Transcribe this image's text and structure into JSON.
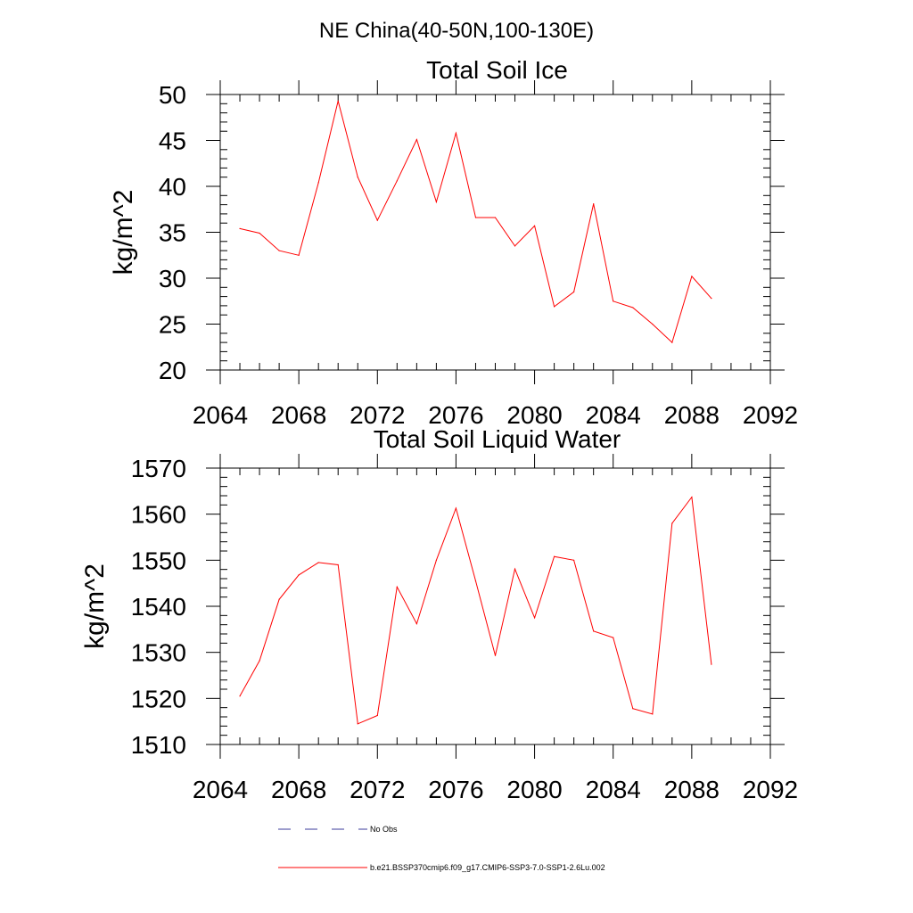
{
  "page_title": "NE China(40-50N,100-130E)",
  "colors": {
    "series": "#ff0000",
    "obs": "#3b3b9b",
    "axis": "#000000"
  },
  "legend": {
    "obs_label": "No Obs",
    "model_label": "b.e21.BSSP370cmip6.f09_g17.CMIP6-SSP3-7.0-SSP1-2.6Lu.002"
  },
  "chart_data": [
    {
      "type": "line",
      "title": "Total Soil Ice",
      "xlabel": "",
      "ylabel": "kg/m^2",
      "xlim": [
        2064,
        2092
      ],
      "ylim": [
        20,
        50
      ],
      "xticks": [
        2064,
        2068,
        2072,
        2076,
        2080,
        2084,
        2088,
        2092
      ],
      "yticks": [
        20,
        25,
        30,
        35,
        40,
        45,
        50
      ],
      "series": [
        {
          "x": [
            2065,
            2066,
            2067,
            2068,
            2069,
            2070,
            2071,
            2072,
            2073,
            2074,
            2075,
            2076,
            2077,
            2078,
            2079,
            2080,
            2081,
            2082,
            2083,
            2084,
            2085,
            2086,
            2087,
            2088,
            2089
          ],
          "values": [
            35.4,
            34.9,
            33.0,
            32.5,
            40.4,
            49.3,
            41.0,
            36.3,
            40.6,
            45.1,
            38.3,
            45.8,
            36.6,
            36.6,
            33.5,
            35.7,
            26.9,
            28.5,
            38.1,
            27.5,
            26.8,
            25.0,
            23.0,
            30.2,
            27.8
          ]
        }
      ]
    },
    {
      "type": "line",
      "title": "Total Soil Liquid Water",
      "xlabel": "",
      "ylabel": "kg/m^2",
      "xlim": [
        2064,
        2092
      ],
      "ylim": [
        1510,
        1570
      ],
      "xticks": [
        2064,
        2068,
        2072,
        2076,
        2080,
        2084,
        2088,
        2092
      ],
      "yticks": [
        1510,
        1520,
        1530,
        1540,
        1550,
        1560,
        1570
      ],
      "series": [
        {
          "x": [
            2065,
            2066,
            2067,
            2068,
            2069,
            2070,
            2071,
            2072,
            2073,
            2074,
            2075,
            2076,
            2077,
            2078,
            2079,
            2080,
            2081,
            2082,
            2083,
            2084,
            2085,
            2086,
            2087,
            2088,
            2089
          ],
          "values": [
            1520.5,
            1528.2,
            1541.5,
            1546.8,
            1549.5,
            1549.0,
            1514.5,
            1516.3,
            1544.2,
            1536.2,
            1550.0,
            1561.3,
            1545.5,
            1529.3,
            1548.1,
            1537.5,
            1550.8,
            1550.0,
            1534.6,
            1533.2,
            1517.8,
            1516.6,
            1558.0,
            1563.7,
            1527.4
          ]
        }
      ]
    }
  ]
}
